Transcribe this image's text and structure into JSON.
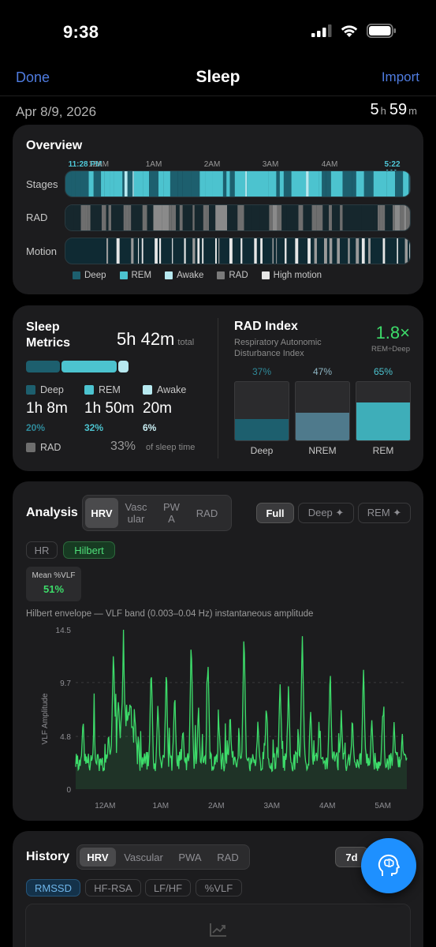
{
  "status_bar": {
    "time": "9:38"
  },
  "nav": {
    "done": "Done",
    "title": "Sleep",
    "import": "Import"
  },
  "summary": {
    "date": "Apr 8/9, 2026",
    "hours": "5",
    "h_unit": "h",
    "minutes": "59",
    "m_unit": "m"
  },
  "overview": {
    "title": "Overview",
    "time_labels": [
      "11:28 PM",
      "12AM",
      "1AM",
      "2AM",
      "3AM",
      "4AM",
      "5:22 AM"
    ],
    "rows": [
      "Stages",
      "RAD",
      "Motion"
    ],
    "legend": [
      "Deep",
      "REM",
      "Awake",
      "RAD",
      "High motion"
    ],
    "colors": {
      "deep": "#1d5f6e",
      "rem": "#4cc3cf",
      "awake": "#b7e9f0",
      "rad": "#7a7a7a",
      "motion": "#e6e6e6",
      "track": "#0f2a33"
    }
  },
  "metrics": {
    "title": "Sleep Metrics",
    "total": "5h 42m",
    "total_label": "total",
    "stages": [
      {
        "name": "Deep",
        "value": "1h 8m",
        "pct": "20%",
        "color": "#1d5f6e",
        "pct_color": "#2f8a9a"
      },
      {
        "name": "REM",
        "value": "1h 50m",
        "pct": "32%",
        "color": "#4cc3cf",
        "pct_color": "#4cc3cf"
      },
      {
        "name": "Awake",
        "value": "20m",
        "pct": "6%",
        "color": "#b7e9f0",
        "pct_color": "#c9eef3"
      }
    ],
    "rad": {
      "label": "RAD",
      "pct": "33%",
      "suffix": "of sleep time"
    }
  },
  "rad_index": {
    "title": "RAD Index",
    "subtitle": "Respiratory Autonomic Disturbance Index",
    "value": "1.8×",
    "value_sub": "REM÷Deep",
    "bars": [
      {
        "name": "Deep",
        "pct": "37%",
        "level": 0.37,
        "color": "#1d5f6e",
        "pct_color": "#2f8a9a"
      },
      {
        "name": "NREM",
        "pct": "47%",
        "level": 0.47,
        "color": "#4f7a8c",
        "pct_color": "#8fb6c4"
      },
      {
        "name": "REM",
        "pct": "65%",
        "level": 0.65,
        "color": "#3eaeb9",
        "pct_color": "#4cc3cf"
      }
    ]
  },
  "analysis": {
    "title": "Analysis",
    "tabs": [
      "HRV",
      "Vascular",
      "PWA",
      "RAD"
    ],
    "tab_selected": "HRV",
    "ranges": [
      "Full",
      "Deep ✦",
      "REM ✦"
    ],
    "range_selected": "Full",
    "modes": [
      "HR",
      "Hilbert"
    ],
    "mode_selected": "Hilbert",
    "mean_label": "Mean %VLF",
    "mean_value": "51%",
    "caption": "Hilbert envelope — VLF band (0.003–0.04 Hz) instantaneous amplitude"
  },
  "chart_data": {
    "type": "line",
    "title": "Hilbert envelope — VLF band (0.003–0.04 Hz) instantaneous amplitude",
    "xlabel": "",
    "ylabel": "VLF Amplitude",
    "yticks": [
      "14.5",
      "9.7",
      "4.8",
      "0"
    ],
    "ylim": [
      0,
      14.5
    ],
    "xticks": [
      "12AM",
      "1AM",
      "2AM",
      "3AM",
      "4AM",
      "5AM"
    ],
    "x_range_hours": [
      -0.53,
      5.43
    ],
    "series_color": "#3ddc6a",
    "peaks": [
      [
        -0.4,
        6.0
      ],
      [
        -0.2,
        5.5
      ],
      [
        0.15,
        12.7
      ],
      [
        0.25,
        7.0
      ],
      [
        0.33,
        13.5
      ],
      [
        0.45,
        8.0
      ],
      [
        0.53,
        5.0
      ],
      [
        0.83,
        11.0
      ],
      [
        0.95,
        7.5
      ],
      [
        1.1,
        10.0
      ],
      [
        1.25,
        8.0
      ],
      [
        1.4,
        5.5
      ],
      [
        1.55,
        13.0
      ],
      [
        1.68,
        7.0
      ],
      [
        1.85,
        11.5
      ],
      [
        2.05,
        5.5
      ],
      [
        2.25,
        6.5
      ],
      [
        2.5,
        13.8
      ],
      [
        2.75,
        6.0
      ],
      [
        2.9,
        7.0
      ],
      [
        3.15,
        9.5
      ],
      [
        3.3,
        8.5
      ],
      [
        3.55,
        13.5
      ],
      [
        3.7,
        7.0
      ],
      [
        3.85,
        5.5
      ],
      [
        4.05,
        10.5
      ],
      [
        4.25,
        6.5
      ],
      [
        4.45,
        6.0
      ],
      [
        4.65,
        10.5
      ],
      [
        4.8,
        6.0
      ],
      [
        5.0,
        7.0
      ],
      [
        5.2,
        5.5
      ],
      [
        5.35,
        4.5
      ]
    ]
  },
  "history": {
    "title": "History",
    "tabs": [
      "HRV",
      "Vascular",
      "PWA",
      "RAD"
    ],
    "tab_selected": "HRV",
    "range": "7d",
    "metrics": [
      "RMSSD",
      "HF-RSA",
      "LF/HF",
      "%VLF"
    ],
    "metric_selected": "RMSSD"
  },
  "fab": {
    "icon": "brain-head-icon"
  }
}
